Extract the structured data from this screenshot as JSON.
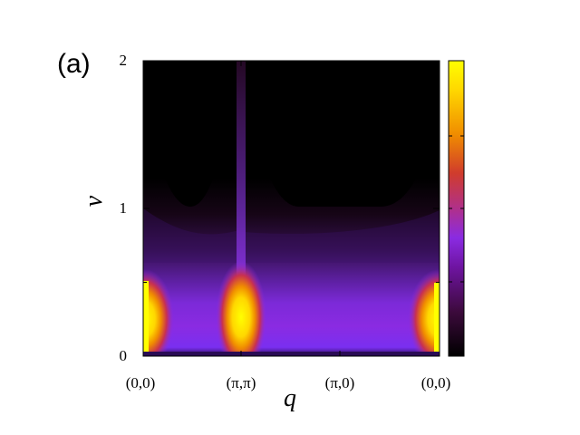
{
  "chart_data": {
    "type": "heatmap",
    "panel_label": "(a)",
    "xlabel": "q",
    "ylabel": "ν",
    "x_ticks": [
      "(0,0)",
      "(π,π)",
      "(π,0)",
      "(0,0)"
    ],
    "y_ticks": [
      "0",
      "1",
      "2"
    ],
    "ylim": [
      0,
      2
    ],
    "x_path": [
      "(0,0)",
      "(π,π)",
      "(π,0)",
      "(0,0)"
    ],
    "colormap": [
      "#000000",
      "#3c0a3c",
      "#6e14a0",
      "#8a2be2",
      "#b0308a",
      "#d03c2c",
      "#f08c00",
      "#ffd700",
      "#ffff00"
    ],
    "colorbar": true,
    "features": [
      {
        "q": "(0,0)",
        "nu_peak": 0.25
      },
      {
        "q": "(π,π)",
        "nu_peak": 0.25
      },
      {
        "q": "(0,0)",
        "nu_peak": 0.25
      }
    ]
  }
}
